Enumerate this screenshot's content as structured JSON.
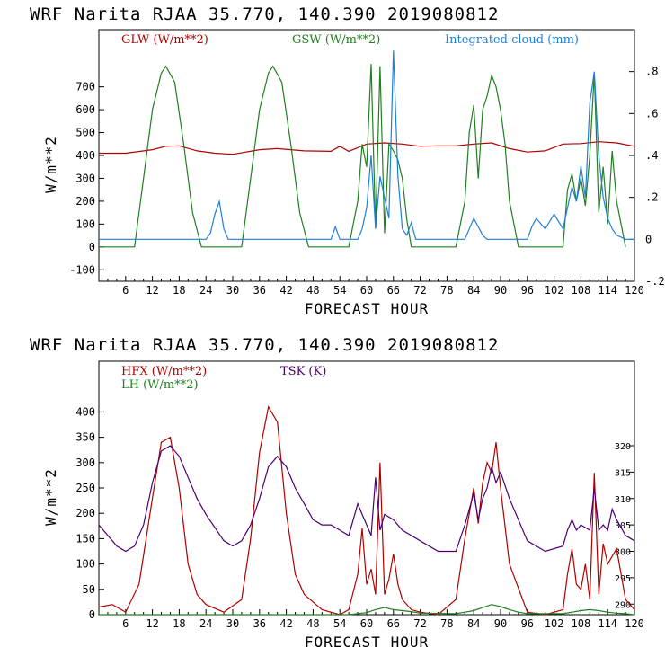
{
  "chart_data": [
    {
      "type": "line",
      "title": "WRF   Narita RJAA    35.770, 140.390  2019080812",
      "xlabel": "FORECAST HOUR",
      "ylabel": "W/m**2",
      "xlim": [
        0,
        120
      ],
      "ylim": [
        -150,
        950
      ],
      "y2lim": [
        -0.2,
        1.0
      ],
      "x_ticks": [
        6,
        12,
        18,
        24,
        30,
        36,
        42,
        48,
        54,
        60,
        66,
        72,
        78,
        84,
        90,
        96,
        102,
        108,
        114,
        120
      ],
      "y_ticks": [
        -100,
        0,
        100,
        200,
        300,
        400,
        500,
        600,
        700
      ],
      "y2_ticks": [
        -0.2,
        0,
        0.2,
        0.4,
        0.6,
        0.8
      ],
      "y2_tick_labels": [
        "-.2",
        "0",
        ".2",
        ".4",
        ".6",
        ".8"
      ],
      "series": [
        {
          "name": "GLW (W/m**2)",
          "color": "#b00000",
          "axis": "left",
          "x": [
            0,
            6,
            12,
            15,
            18,
            22,
            26,
            30,
            36,
            40,
            46,
            52,
            54,
            56,
            60,
            64,
            68,
            72,
            76,
            80,
            84,
            88,
            92,
            96,
            100,
            104,
            108,
            112,
            116,
            120
          ],
          "y": [
            410,
            410,
            425,
            440,
            442,
            420,
            410,
            405,
            425,
            430,
            420,
            418,
            440,
            418,
            450,
            455,
            450,
            440,
            442,
            442,
            450,
            455,
            430,
            415,
            420,
            450,
            452,
            460,
            455,
            440
          ]
        },
        {
          "name": "GSW (W/m**2)",
          "color": "#208020",
          "axis": "left",
          "x": [
            0,
            8,
            10,
            12,
            14,
            15,
            17,
            19,
            21,
            23,
            32,
            34,
            36,
            38,
            39,
            41,
            43,
            45,
            47,
            56,
            58,
            59,
            60,
            61,
            62,
            63,
            64,
            65,
            66,
            67,
            68,
            69,
            70,
            80,
            82,
            83,
            84,
            85,
            86,
            87,
            88,
            89,
            90,
            91,
            92,
            94,
            104,
            105,
            106,
            107,
            108,
            109,
            110,
            111,
            112,
            113,
            114,
            115,
            116,
            118
          ],
          "y": [
            0,
            0,
            300,
            600,
            760,
            790,
            720,
            450,
            150,
            0,
            0,
            300,
            600,
            760,
            790,
            720,
            450,
            150,
            0,
            0,
            200,
            450,
            350,
            800,
            80,
            790,
            60,
            450,
            420,
            380,
            300,
            120,
            0,
            0,
            200,
            500,
            620,
            300,
            600,
            660,
            750,
            700,
            600,
            450,
            200,
            0,
            0,
            250,
            320,
            200,
            300,
            180,
            400,
            760,
            150,
            350,
            100,
            420,
            200,
            0
          ]
        },
        {
          "name": "Integrated cloud (mm)",
          "color": "#1f7fd8",
          "axis": "right",
          "x": [
            0,
            24,
            25,
            26,
            27,
            28,
            29,
            30,
            52,
            53,
            54,
            58,
            59,
            60,
            61,
            62,
            63,
            64,
            65,
            66,
            67,
            68,
            69,
            70,
            71,
            72,
            82,
            83,
            84,
            85,
            86,
            87,
            88,
            96,
            97,
            98,
            100,
            102,
            104,
            105,
            106,
            107,
            108,
            109,
            110,
            111,
            112,
            113,
            114,
            115,
            116,
            118,
            120
          ],
          "y": [
            0,
            0,
            0.03,
            0.12,
            0.18,
            0.05,
            0.0,
            0,
            0,
            0.06,
            0,
            0,
            0.05,
            0.15,
            0.4,
            0.05,
            0.3,
            0.2,
            0.1,
            0.9,
            0.3,
            0.05,
            0.02,
            0.08,
            0.0,
            0,
            0,
            0.05,
            0.1,
            0.06,
            0.02,
            0,
            0,
            0,
            0.06,
            0.1,
            0.05,
            0.12,
            0.05,
            0.15,
            0.25,
            0.18,
            0.35,
            0.2,
            0.65,
            0.8,
            0.4,
            0.2,
            0.1,
            0.05,
            0.02,
            0,
            0
          ]
        }
      ]
    },
    {
      "type": "line",
      "title": "WRF   Narita RJAA    35.770, 140.390  2019080812",
      "xlabel": "FORECAST HOUR",
      "ylabel": "W/m**2",
      "xlim": [
        0,
        120
      ],
      "ylim": [
        0,
        500
      ],
      "y2lim": [
        288,
        336
      ],
      "x_ticks": [
        6,
        12,
        18,
        24,
        30,
        36,
        42,
        48,
        54,
        60,
        66,
        72,
        78,
        84,
        90,
        96,
        102,
        108,
        114,
        120
      ],
      "y_ticks": [
        0,
        50,
        100,
        150,
        200,
        250,
        300,
        350,
        400
      ],
      "y2_ticks": [
        290,
        295,
        300,
        305,
        310,
        315,
        320
      ],
      "series": [
        {
          "name": "HFX (W/m**2)",
          "color": "#b00000",
          "axis": "left",
          "x": [
            0,
            3,
            6,
            9,
            12,
            14,
            16,
            18,
            20,
            22,
            24,
            28,
            32,
            34,
            36,
            38,
            40,
            42,
            44,
            46,
            50,
            54,
            56,
            58,
            59,
            60,
            61,
            62,
            63,
            64,
            65,
            66,
            67,
            68,
            70,
            72,
            76,
            80,
            82,
            84,
            85,
            86,
            87,
            88,
            89,
            90,
            92,
            96,
            100,
            104,
            105,
            106,
            107,
            108,
            109,
            110,
            111,
            112,
            113,
            114,
            116,
            118,
            120
          ],
          "y": [
            15,
            20,
            5,
            60,
            230,
            340,
            350,
            250,
            100,
            40,
            20,
            5,
            30,
            150,
            320,
            410,
            380,
            200,
            80,
            40,
            10,
            0,
            10,
            80,
            170,
            60,
            90,
            40,
            300,
            40,
            70,
            120,
            60,
            30,
            10,
            5,
            0,
            30,
            150,
            250,
            180,
            260,
            300,
            280,
            340,
            250,
            100,
            5,
            0,
            10,
            80,
            130,
            60,
            50,
            100,
            30,
            280,
            40,
            140,
            100,
            130,
            30,
            10
          ]
        },
        {
          "name": "LH (W/m**2)",
          "color": "#208020",
          "axis": "left",
          "x": [
            0,
            56,
            58,
            60,
            62,
            64,
            66,
            68,
            70,
            72,
            80,
            82,
            84,
            86,
            88,
            90,
            92,
            94,
            96,
            104,
            106,
            108,
            110,
            112,
            114,
            116,
            118,
            120
          ],
          "y": [
            0,
            0,
            2,
            4,
            10,
            14,
            10,
            8,
            6,
            3,
            2,
            5,
            8,
            14,
            20,
            16,
            10,
            5,
            2,
            2,
            5,
            8,
            10,
            8,
            5,
            3,
            2,
            0
          ]
        },
        {
          "name": "TSK (K)",
          "color": "#4a0070",
          "axis": "right",
          "x": [
            0,
            4,
            6,
            8,
            10,
            12,
            14,
            16,
            18,
            20,
            22,
            24,
            28,
            30,
            32,
            34,
            36,
            38,
            40,
            42,
            44,
            46,
            48,
            50,
            52,
            54,
            56,
            57,
            58,
            59,
            60,
            61,
            62,
            63,
            64,
            66,
            68,
            70,
            72,
            76,
            80,
            82,
            84,
            85,
            86,
            87,
            88,
            89,
            90,
            92,
            96,
            100,
            104,
            105,
            106,
            107,
            108,
            110,
            111,
            112,
            113,
            114,
            115,
            116,
            118,
            120
          ],
          "y": [
            305,
            301,
            300,
            301,
            305,
            313,
            319,
            320,
            318,
            314,
            310,
            307,
            302,
            301,
            302,
            305,
            310,
            316,
            318,
            316,
            312,
            309,
            306,
            305,
            305,
            304,
            303,
            306,
            309,
            307,
            305,
            303,
            314,
            304,
            307,
            306,
            304,
            303,
            302,
            300,
            300,
            305,
            311,
            306,
            310,
            312,
            316,
            313,
            315,
            310,
            302,
            300,
            301,
            304,
            306,
            304,
            305,
            304,
            312,
            304,
            305,
            304,
            308,
            306,
            303,
            302
          ]
        }
      ]
    }
  ]
}
